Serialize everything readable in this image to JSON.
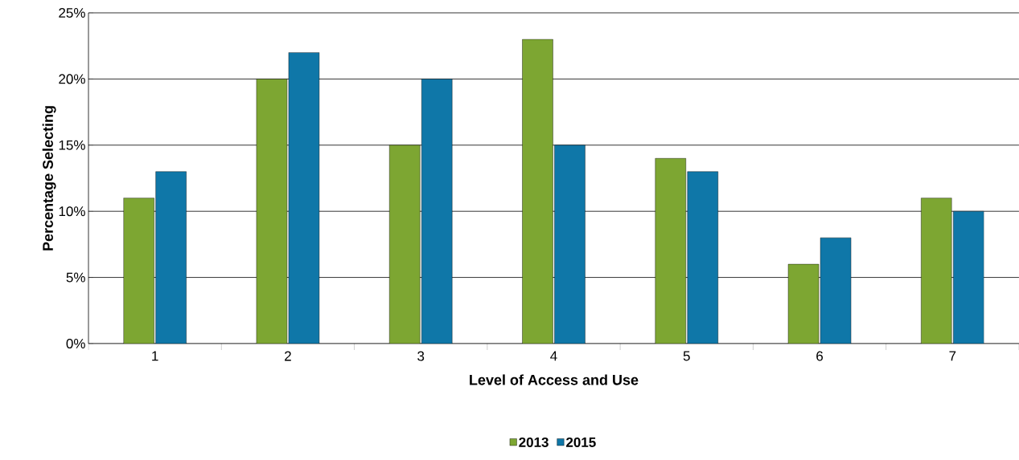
{
  "chart_data": {
    "type": "bar",
    "xlabel": "Level of Access and Use",
    "ylabel": "Percentage Selecting",
    "categories": [
      "1",
      "2",
      "3",
      "4",
      "5",
      "6",
      "7"
    ],
    "series": [
      {
        "name": "2013",
        "color": "#7da632",
        "values": [
          11,
          20,
          15,
          23,
          14,
          6,
          11
        ]
      },
      {
        "name": "2015",
        "color": "#0f77a8",
        "values": [
          13,
          22,
          20,
          15,
          13,
          8,
          10
        ]
      }
    ],
    "ylim": [
      0,
      25
    ],
    "yticks": [
      {
        "value": 0,
        "label": "0%"
      },
      {
        "value": 5,
        "label": "5%"
      },
      {
        "value": 10,
        "label": "10%"
      },
      {
        "value": 15,
        "label": "15%"
      },
      {
        "value": 20,
        "label": "20%"
      },
      {
        "value": 25,
        "label": "25%"
      }
    ],
    "grid": "y",
    "legend": "bottom"
  }
}
